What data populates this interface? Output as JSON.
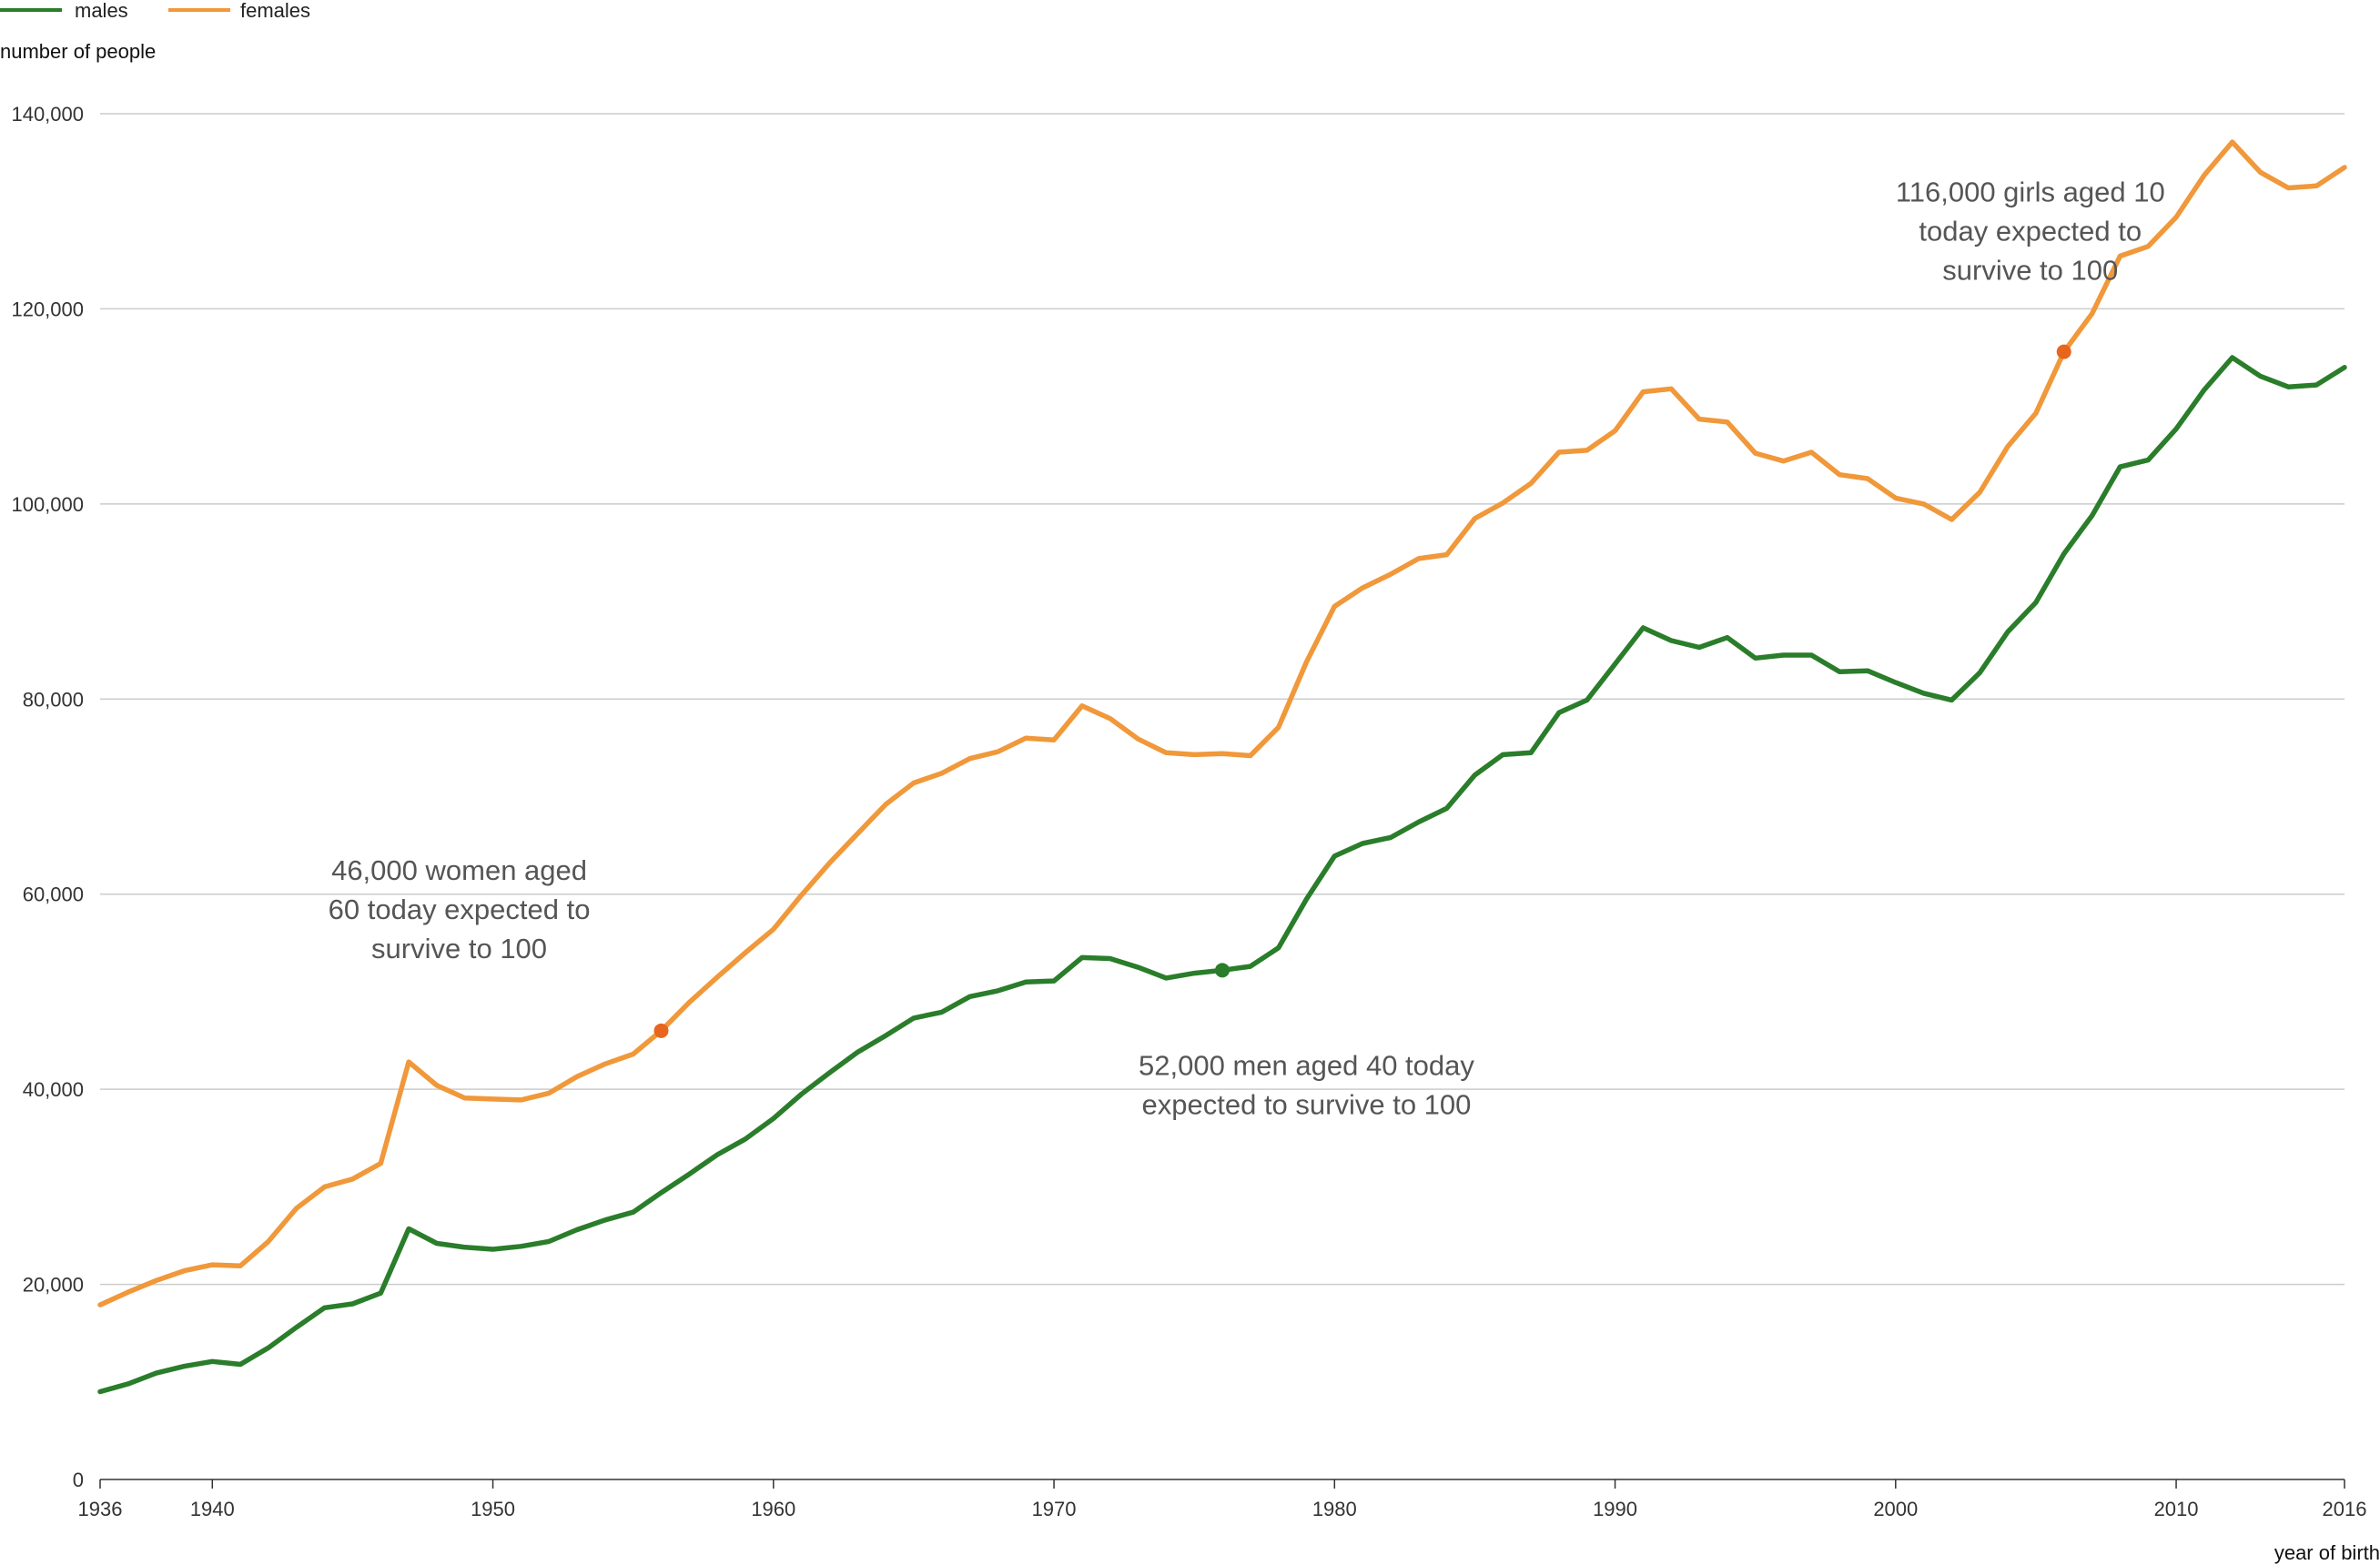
{
  "chart_data": {
    "type": "line",
    "title": "",
    "ylabel": "number of people",
    "xlabel": "year of birth",
    "xlim": [
      1936,
      2016
    ],
    "ylim": [
      0,
      140000
    ],
    "grid": true,
    "legend_position": "top-left",
    "y_ticks": [
      {
        "value": 0,
        "label": "0"
      },
      {
        "value": 20000,
        "label": "20,000"
      },
      {
        "value": 40000,
        "label": "40,000"
      },
      {
        "value": 60000,
        "label": "60,000"
      },
      {
        "value": 80000,
        "label": "80,000"
      },
      {
        "value": 100000,
        "label": "100,000"
      },
      {
        "value": 120000,
        "label": "120,000"
      },
      {
        "value": 140000,
        "label": "140,000"
      }
    ],
    "x_ticks": [
      {
        "value": 1936,
        "label": "1936"
      },
      {
        "value": 1940,
        "label": "1940"
      },
      {
        "value": 1950,
        "label": "1950"
      },
      {
        "value": 1960,
        "label": "1960"
      },
      {
        "value": 1970,
        "label": "1970"
      },
      {
        "value": 1980,
        "label": "1980"
      },
      {
        "value": 1990,
        "label": "1990"
      },
      {
        "value": 2000,
        "label": "2000"
      },
      {
        "value": 2010,
        "label": "2010"
      },
      {
        "value": 2016,
        "label": "2016"
      }
    ],
    "x": [
      1936,
      1937,
      1938,
      1939,
      1940,
      1941,
      1942,
      1943,
      1944,
      1945,
      1946,
      1947,
      1948,
      1949,
      1950,
      1951,
      1952,
      1953,
      1954,
      1955,
      1956,
      1957,
      1958,
      1959,
      1960,
      1961,
      1962,
      1963,
      1964,
      1965,
      1966,
      1967,
      1968,
      1969,
      1970,
      1971,
      1972,
      1973,
      1974,
      1975,
      1976,
      1977,
      1978,
      1979,
      1980,
      1981,
      1982,
      1983,
      1984,
      1985,
      1986,
      1987,
      1988,
      1989,
      1990,
      1991,
      1992,
      1993,
      1994,
      1995,
      1996,
      1997,
      1998,
      1999,
      2000,
      2001,
      2002,
      2003,
      2004,
      2005,
      2006,
      2007,
      2008,
      2009,
      2010,
      2011,
      2012,
      2013,
      2014,
      2015,
      2016
    ],
    "series": [
      {
        "name": "males",
        "color": "#2a7d2a",
        "values": [
          9000,
          9800,
          10900,
          11600,
          12100,
          11800,
          13500,
          15600,
          17600,
          18000,
          19100,
          25700,
          24200,
          23800,
          23600,
          23900,
          24400,
          25600,
          26600,
          27400,
          29400,
          31300,
          33300,
          34900,
          37000,
          39500,
          41700,
          43800,
          45500,
          47300,
          47900,
          49500,
          50100,
          51000,
          51100,
          53500,
          53400,
          52500,
          51400,
          51900,
          52200,
          52600,
          54500,
          59500,
          63900,
          65200,
          65800,
          67400,
          68800,
          72200,
          74300,
          74500,
          78600,
          79900,
          83600,
          87300,
          86000,
          85300,
          86300,
          84200,
          84500,
          84500,
          82800,
          82900,
          81700,
          80600,
          79900,
          82700,
          86900,
          89900,
          94900,
          98800,
          103800,
          104500,
          107700,
          111700,
          115000,
          113100,
          112000,
          112200,
          114000
        ]
      },
      {
        "name": "females",
        "color": "#f0983a",
        "values": [
          17900,
          19200,
          20400,
          21400,
          22000,
          21900,
          24400,
          27800,
          30000,
          30800,
          32400,
          42800,
          40400,
          39100,
          39000,
          38900,
          39600,
          41300,
          42600,
          43600,
          46000,
          48900,
          51500,
          54000,
          56400,
          59900,
          63200,
          66200,
          69200,
          71400,
          72400,
          73900,
          74600,
          76000,
          75800,
          79300,
          78000,
          75900,
          74500,
          74300,
          74400,
          74200,
          77100,
          83800,
          89500,
          91400,
          92800,
          94400,
          94800,
          98500,
          100100,
          102100,
          105300,
          105500,
          107500,
          111500,
          111800,
          108700,
          108400,
          105200,
          104400,
          105300,
          103000,
          102600,
          100600,
          100000,
          98400,
          101200,
          105900,
          109300,
          115600,
          119500,
          125400,
          126400,
          129400,
          133700,
          137100,
          134000,
          132400,
          132600,
          134500
        ]
      }
    ],
    "markers": [
      {
        "series": "females",
        "x": 1956,
        "y": 46000,
        "color": "#e8651e"
      },
      {
        "series": "males",
        "x": 1976,
        "y": 52200,
        "color": "#2a7d2a"
      },
      {
        "series": "females",
        "x": 2006,
        "y": 115600,
        "color": "#e8651e"
      }
    ],
    "annotations": [
      {
        "lines": [
          "46,000 women aged",
          "60 today expected to",
          "survive to 100"
        ],
        "x": 1948.8,
        "y": 58500
      },
      {
        "lines": [
          "52,000 men aged 40 today",
          "expected to survive to 100"
        ],
        "x": 1979,
        "y": 40500
      },
      {
        "lines": [
          "116,000 girls aged 10",
          "today expected to",
          "survive to 100"
        ],
        "x": 2004.8,
        "y": 128000
      }
    ]
  }
}
